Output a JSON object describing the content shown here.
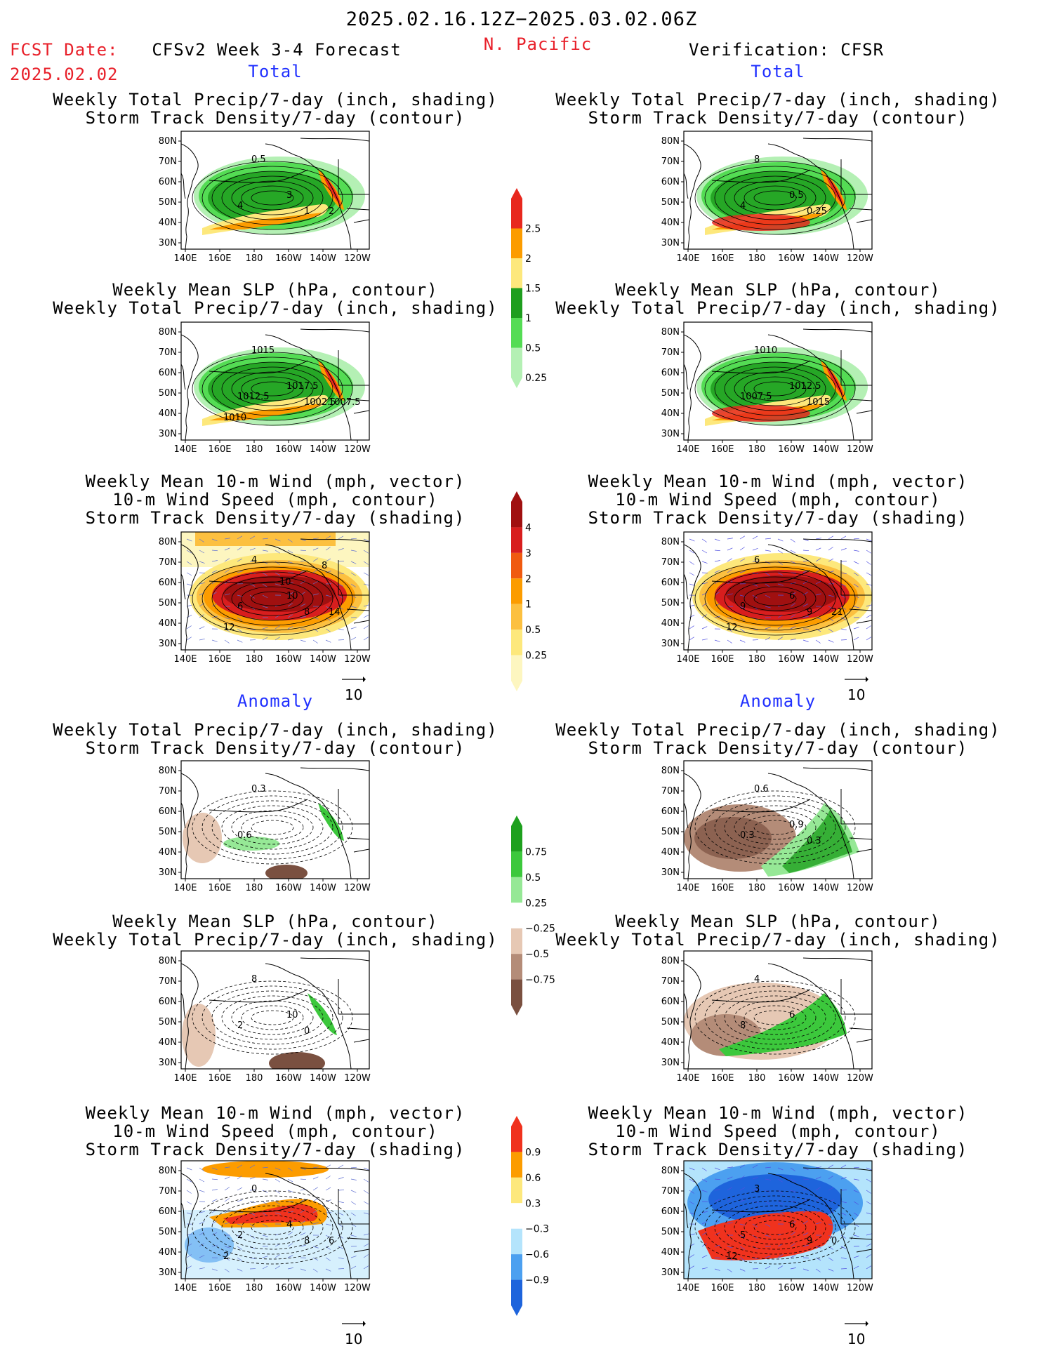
{
  "header": {
    "date_range": "2025.02.16.12Z−2025.03.02.06Z",
    "fcst_label": "FCST Date:",
    "fcst_date": "2025.02.02",
    "model_title": "CFSv2 Week 3-4 Forecast",
    "region": "N. Pacific",
    "verification": "Verification: CFSR"
  },
  "sections": {
    "total": "Total",
    "anomaly": "Anomaly"
  },
  "titles": {
    "precip_track": [
      "Weekly Total Precip/7-day (inch, shading)",
      "Storm Track Density/7-day (contour)"
    ],
    "slp_precip": [
      "Weekly Mean SLP (hPa, contour)",
      "Weekly Total Precip/7-day (inch, shading)"
    ],
    "wind_track": [
      "Weekly Mean 10-m Wind (mph, vector)",
      "10-m Wind Speed (mph, contour)",
      "Storm Track Density/7-day (shading)"
    ]
  },
  "axes": {
    "lat_ticks": [
      "80N",
      "70N",
      "60N",
      "50N",
      "40N",
      "30N"
    ],
    "lon_ticks": [
      "140E",
      "160E",
      "180",
      "160W",
      "140W",
      "120W"
    ]
  },
  "vector_ref": "10",
  "colorbars": {
    "total_precip": {
      "labels": [
        "2.5",
        "2",
        "1.5",
        "1",
        "0.5",
        "0.25"
      ],
      "colors": [
        "#e8281e",
        "#fc9c00",
        "#fde87c",
        "#1e9e1e",
        "#54dc54",
        "#b4f0b4"
      ]
    },
    "total_track": {
      "labels": [
        "4",
        "3",
        "2",
        "1",
        "0.5",
        "0.25"
      ],
      "colors": [
        "#a01010",
        "#d81e1e",
        "#f05a10",
        "#fc9c00",
        "#fcc040",
        "#fde87c",
        "#fdf6c0"
      ]
    },
    "anom_precip": {
      "labels": [
        "0.75",
        "0.5",
        "0.25",
        "−0.25",
        "−0.5",
        "−0.75"
      ],
      "colors": [
        "#1ea01e",
        "#3cc83c",
        "#96e896",
        "#ffffff",
        "#e6c8b4",
        "#b48c78",
        "#7a5040"
      ]
    },
    "anom_track": {
      "labels": [
        "0.9",
        "0.6",
        "0.3",
        "−0.3",
        "−0.6",
        "−0.9"
      ],
      "colors": [
        "#f0321e",
        "#fc9c00",
        "#fde87c",
        "#ffffff",
        "#b4e4fc",
        "#4ca0f0",
        "#1e64dc"
      ]
    }
  },
  "contour_labels": {
    "f_total_precip": [
      "0.5",
      "4",
      "3",
      "1",
      "2"
    ],
    "v_total_precip": [
      "8",
      "4",
      "0.5",
      "0.25"
    ],
    "f_total_slp": [
      "1015",
      "1012.5",
      "1017.5",
      "1002.5",
      "1007.5",
      "1010"
    ],
    "v_total_slp": [
      "1010",
      "1007.5",
      "1012.5",
      "1015"
    ],
    "f_total_wind": [
      "4",
      "6",
      "10",
      "8",
      "14",
      "12",
      "10",
      "8"
    ],
    "v_total_wind": [
      "6",
      "9",
      "6",
      "9",
      "21",
      "12"
    ],
    "f_anom_precip": [
      "0.3",
      "0.6"
    ],
    "v_anom_precip": [
      "0.6",
      "0.3",
      "0.9",
      "0.3"
    ],
    "f_anom_slp": [
      "8",
      "2",
      "10",
      "0"
    ],
    "v_anom_slp": [
      "4",
      "8",
      "6"
    ],
    "f_anom_wind": [
      "0",
      "2",
      "4",
      "8",
      "6",
      "2"
    ],
    "v_anom_wind": [
      "3",
      "5",
      "6",
      "9",
      "0",
      "12"
    ]
  }
}
